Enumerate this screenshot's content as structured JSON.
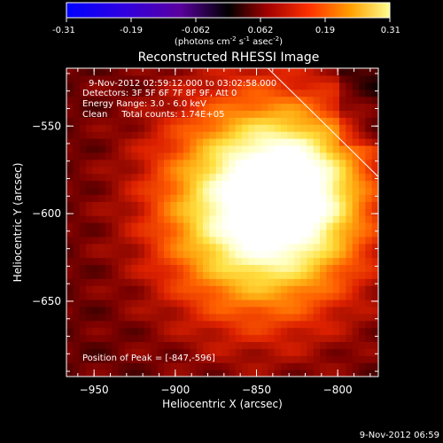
{
  "chart_data": {
    "type": "heatmap",
    "title": "Reconstructed RHESSI Image",
    "xlabel": "Heliocentric X (arcsec)",
    "ylabel": "Heliocentric Y (arcsec)",
    "xlim": [
      -967,
      -775
    ],
    "ylim": [
      -693,
      -517
    ],
    "xticks": [
      -950,
      -900,
      -850,
      -800
    ],
    "yticks": [
      -550,
      -600,
      -650
    ],
    "colorbar": {
      "min": -0.31,
      "max": 0.31,
      "ticks": [
        "-0.31",
        "-0.19",
        "-0.062",
        "0.062",
        "0.19",
        "0.31"
      ],
      "unit_parts": [
        "(photons cm",
        "-2",
        " s",
        "-1",
        " asec",
        "-2",
        ")"
      ]
    },
    "annotations": [
      "9-Nov-2012 02:59:12.000 to 03:02:58.000",
      "Detectors: 3F 5F 6F 7F 8F 9F, Att 0",
      "Energy Range: 3.0 - 6.0 keV",
      "Clean     Total counts: 1.74E+05"
    ],
    "peak_text": "Position of Peak = [-847,-596]",
    "peak": [
      -847,
      -596
    ],
    "limb_line": [
      [
        -843,
        -517
      ],
      [
        -775,
        -579
      ]
    ],
    "timestamp": "9-Nov-2012 06:59",
    "colormap": [
      "#000000",
      "#7a0000",
      "#dc2000",
      "#ff6000",
      "#ffa810",
      "#ffe040",
      "#ffffc0",
      "#ffffff"
    ]
  }
}
